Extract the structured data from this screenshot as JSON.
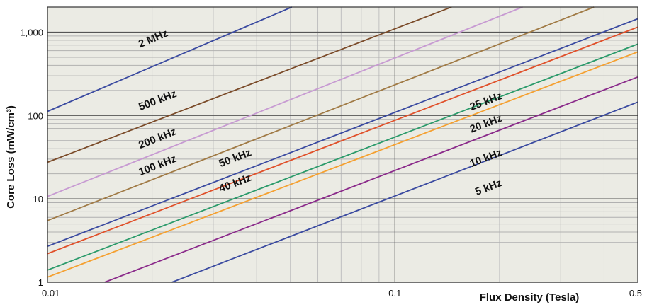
{
  "chart_data": {
    "type": "line",
    "title": "",
    "xlabel": "Flux Density (Tesla)",
    "ylabel": "Core Loss (mW/cm³)",
    "x_scale": "log",
    "y_scale": "log",
    "xlim": [
      0.01,
      0.5
    ],
    "ylim": [
      1,
      2000
    ],
    "x_ticks": [
      {
        "value": 0.01,
        "label": "0.01"
      },
      {
        "value": 0.1,
        "label": "0.1"
      },
      {
        "value": 0.5,
        "label": "0.5"
      }
    ],
    "y_ticks": [
      {
        "value": 1,
        "label": "1"
      },
      {
        "value": 10,
        "label": "10"
      },
      {
        "value": 100,
        "label": "100"
      },
      {
        "value": 1000,
        "label": "1,000"
      }
    ],
    "grid": true,
    "background": "#ebebe4",
    "series": [
      {
        "name": "2 MHz",
        "color": "#3a4aa0",
        "x": [
          0.01,
          0.0505
        ],
        "y": [
          112,
          2000
        ]
      },
      {
        "name": "500 kHz",
        "color": "#7a4a28",
        "x": [
          0.01,
          0.1455
        ],
        "y": [
          27.5,
          2000
        ]
      },
      {
        "name": "200 kHz",
        "color": "#c79ad2",
        "x": [
          0.01,
          0.233
        ],
        "y": [
          10.7,
          2000
        ]
      },
      {
        "name": "100 kHz",
        "color": "#a07a45",
        "x": [
          0.01,
          0.374
        ],
        "y": [
          5.5,
          2000
        ]
      },
      {
        "name": "50 kHz",
        "color": "#3a4aa0",
        "x": [
          0.01,
          0.5
        ],
        "y": [
          2.7,
          1450
        ]
      },
      {
        "name": "40 kHz",
        "color": "#e0502a",
        "x": [
          0.01,
          0.5
        ],
        "y": [
          2.2,
          1150
        ]
      },
      {
        "name": "25 kHz",
        "color": "#2a9a6a",
        "x": [
          0.01,
          0.5
        ],
        "y": [
          1.4,
          720
        ]
      },
      {
        "name": "20 kHz",
        "color": "#f5a030",
        "x": [
          0.01,
          0.5
        ],
        "y": [
          1.15,
          580
        ]
      },
      {
        "name": "10 kHz",
        "color": "#8a2a8a",
        "x": [
          0.0146,
          0.5
        ],
        "y": [
          1,
          290
        ]
      },
      {
        "name": "5 kHz",
        "color": "#3a4aa0",
        "x": [
          0.0228,
          0.5
        ],
        "y": [
          1,
          145
        ]
      }
    ],
    "annotations": [
      {
        "text": "2 MHz",
        "x": 0.0185,
        "y": 650,
        "series": "2 MHz"
      },
      {
        "text": "500 kHz",
        "x": 0.0185,
        "y": 115,
        "series": "500 kHz"
      },
      {
        "text": "200 kHz",
        "x": 0.0185,
        "y": 40,
        "series": "200 kHz"
      },
      {
        "text": "100 kHz",
        "x": 0.0185,
        "y": 19,
        "series": "100 kHz"
      },
      {
        "text": "50 kHz",
        "x": 0.0315,
        "y": 24,
        "series": "50 kHz"
      },
      {
        "text": "40 kHz",
        "x": 0.0315,
        "y": 12,
        "series": "40 kHz"
      },
      {
        "text": "25 kHz",
        "x": 0.166,
        "y": 115,
        "series": "25 kHz"
      },
      {
        "text": "20 kHz",
        "x": 0.166,
        "y": 62,
        "series": "20 kHz"
      },
      {
        "text": "10 kHz",
        "x": 0.166,
        "y": 24,
        "series": "10 kHz"
      },
      {
        "text": "5 kHz",
        "x": 0.172,
        "y": 11,
        "series": "5 kHz"
      }
    ]
  }
}
